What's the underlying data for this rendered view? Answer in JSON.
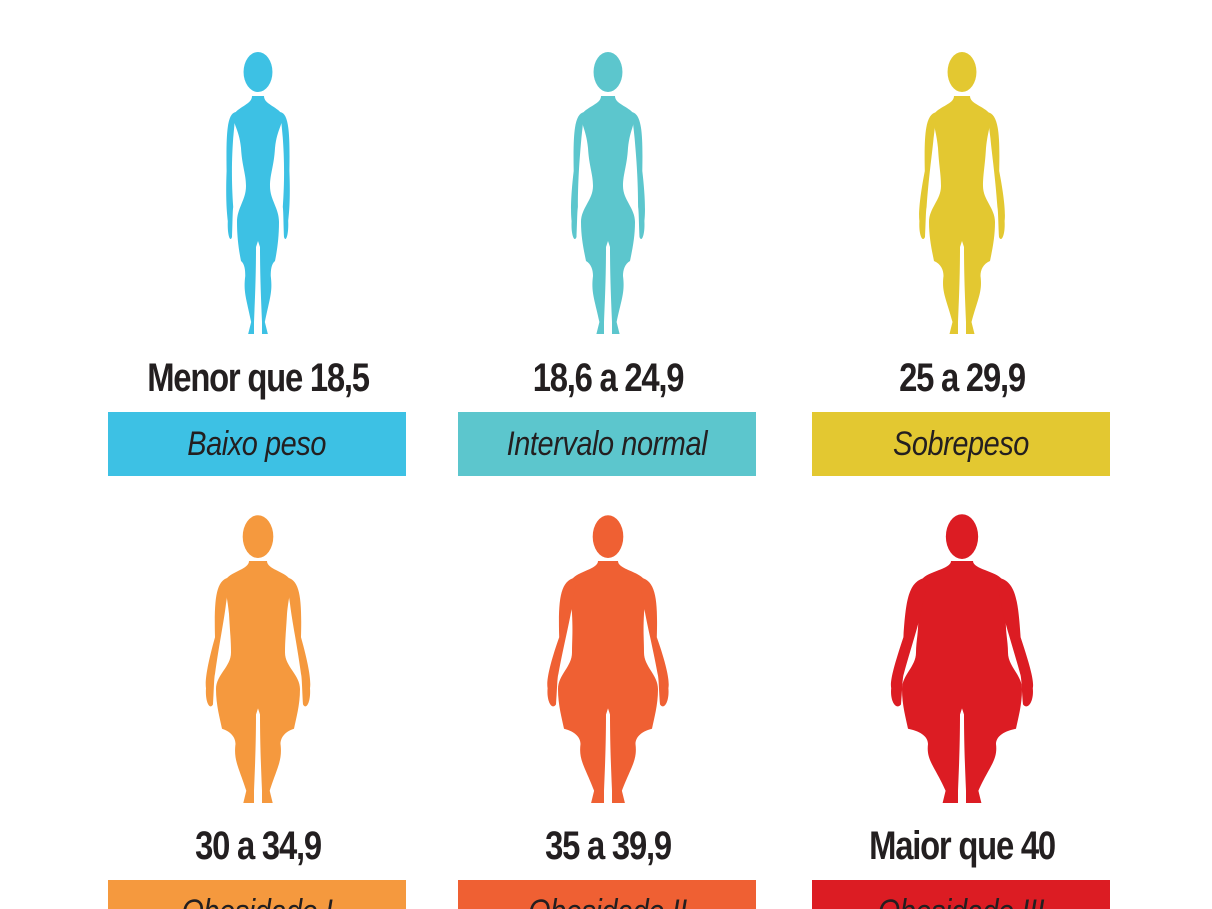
{
  "categories": [
    {
      "range": "Menor que 18,5",
      "label": "Baixo peso",
      "color": "#3dc1e4",
      "icon": "thin-woman-silhouette-icon",
      "shape": 0
    },
    {
      "range": "18,6 a 24,9",
      "label": "Intervalo normal",
      "color": "#5cc6cd",
      "icon": "normal-woman-silhouette-icon",
      "shape": 1
    },
    {
      "range": "25 a 29,9",
      "label": "Sobrepeso",
      "color": "#e3c831",
      "icon": "overweight-woman-silhouette-icon",
      "shape": 2
    },
    {
      "range": "30 a 34,9",
      "label": "Obesidade I",
      "color": "#f5993e",
      "icon": "obese-1-woman-silhouette-icon",
      "shape": 3
    },
    {
      "range": "35 a 39,9",
      "label": "Obesidade II",
      "color": "#ef6033",
      "icon": "obese-2-woman-silhouette-icon",
      "shape": 4
    },
    {
      "range": "Maior que 40",
      "label": "Obesidade III",
      "color": "#dc1c23",
      "icon": "obese-3-woman-silhouette-icon",
      "shape": 5
    }
  ]
}
